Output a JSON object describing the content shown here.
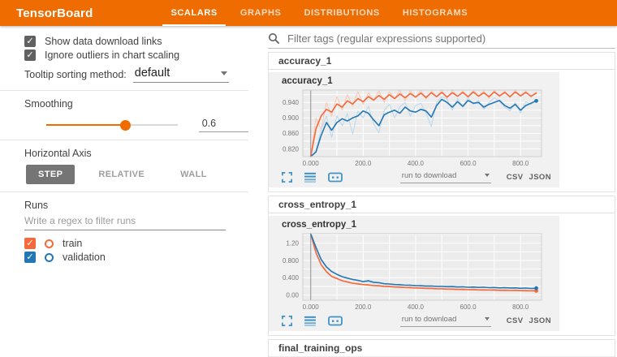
{
  "header": {
    "title": "TensorBoard",
    "tabs": [
      {
        "label": "SCALARS",
        "active": true
      },
      {
        "label": "GRAPHS",
        "active": false
      },
      {
        "label": "DISTRIBUTIONS",
        "active": false
      },
      {
        "label": "HISTOGRAMS",
        "active": false
      }
    ]
  },
  "sidebar": {
    "checkboxes": [
      {
        "label": "Show data download links",
        "checked": true
      },
      {
        "label": "Ignore outliers in chart scaling",
        "checked": true
      }
    ],
    "tooltip_sort": {
      "label": "Tooltip sorting method:",
      "value": "default"
    },
    "smoothing": {
      "label": "Smoothing",
      "value": "0.6",
      "percent": 60
    },
    "horizontal_axis": {
      "label": "Horizontal Axis",
      "options": [
        "STEP",
        "RELATIVE",
        "WALL"
      ],
      "selected": "STEP"
    },
    "runs": {
      "label": "Runs",
      "filter_placeholder": "Write a regex to filter runs",
      "items": [
        {
          "label": "train",
          "color": "#f4683c",
          "checked": true
        },
        {
          "label": "validation",
          "color": "#2277b4",
          "checked": true
        }
      ]
    }
  },
  "main": {
    "filter_placeholder": "Filter tags (regular expressions supported)",
    "sections": [
      {
        "label": "accuracy_1"
      },
      {
        "label": "cross_entropy_1"
      },
      {
        "label": "final_training_ops"
      }
    ],
    "card_footer": {
      "download_label": "run to download",
      "csv": "CSV",
      "json": "JSON"
    }
  },
  "colors": {
    "header_bg": "#ef6c00",
    "accent": "#ef6c00",
    "train": "#f4683c",
    "train_light": "#fbc6ae",
    "validation": "#2277b4",
    "validation_light": "#b9d7ec",
    "icon_blue": "#4292c6",
    "plot_bg": "#ececec",
    "grid": "#ffffff"
  },
  "chart_data": [
    {
      "type": "line",
      "title": "accuracy_1",
      "legend": [
        "train",
        "validation"
      ],
      "grid": true,
      "xlim": [
        -30,
        880
      ],
      "ylim": [
        0.8,
        0.972
      ],
      "x_range": [
        0,
        860
      ],
      "xticks": [
        0,
        200,
        400,
        600,
        800
      ],
      "xtick_labels": [
        "0.000",
        "200.0",
        "400.0",
        "600.0",
        "800.0"
      ],
      "yticks": [
        0.82,
        0.86,
        0.9,
        0.94
      ],
      "ytick_labels": [
        "0.820",
        "0.860",
        "0.900",
        "0.940"
      ],
      "x_grid": 100,
      "y_grid": 0.02,
      "plot_bg": "#ececec",
      "series": [
        {
          "name": "train (raw)",
          "color": "#fbc6ae",
          "width": 1,
          "values": [
            0.79,
            0.9,
            0.87,
            0.94,
            0.905,
            0.955,
            0.92,
            0.96,
            0.93,
            0.968,
            0.935,
            0.965,
            0.945,
            0.97,
            0.94,
            0.968,
            0.95,
            0.972,
            0.945,
            0.97,
            0.952,
            0.972,
            0.948,
            0.97,
            0.955,
            0.972,
            0.95,
            0.972,
            0.955,
            0.97,
            0.952,
            0.972,
            0.956,
            0.97,
            0.95,
            0.972,
            0.955,
            0.97,
            0.952,
            0.972,
            0.956,
            0.97,
            0.953,
            0.968
          ]
        },
        {
          "name": "validation (raw)",
          "color": "#b9d7ec",
          "width": 1,
          "values": [
            0.795,
            0.815,
            0.87,
            0.905,
            0.85,
            0.905,
            0.88,
            0.912,
            0.858,
            0.918,
            0.9,
            0.93,
            0.885,
            0.862,
            0.92,
            0.935,
            0.9,
            0.928,
            0.94,
            0.905,
            0.932,
            0.938,
            0.912,
            0.878,
            0.94,
            0.955,
            0.948,
            0.92,
            0.95,
            0.928,
            0.952,
            0.935,
            0.945,
            0.922,
            0.94,
            0.952,
            0.942,
            0.928,
            0.918,
            0.94,
            0.912,
            0.942,
            0.935,
            0.945
          ]
        },
        {
          "name": "train (smoothed 0.6)",
          "color": "#f4683c",
          "width": 1.6,
          "values": [
            0.8,
            0.872,
            0.905,
            0.922,
            0.915,
            0.936,
            0.928,
            0.944,
            0.936,
            0.95,
            0.942,
            0.955,
            0.946,
            0.958,
            0.948,
            0.96,
            0.95,
            0.962,
            0.952,
            0.963,
            0.954,
            0.964,
            0.953,
            0.965,
            0.955,
            0.966,
            0.954,
            0.965,
            0.956,
            0.966,
            0.955,
            0.967,
            0.956,
            0.965,
            0.955,
            0.967,
            0.957,
            0.966,
            0.955,
            0.967,
            0.957,
            0.966,
            0.956,
            0.964
          ]
        },
        {
          "name": "validation (smoothed 0.6)",
          "color": "#2277b4",
          "width": 1.6,
          "end_dot": true,
          "values": [
            0.8,
            0.812,
            0.855,
            0.888,
            0.868,
            0.888,
            0.898,
            0.892,
            0.9,
            0.905,
            0.918,
            0.912,
            0.895,
            0.88,
            0.908,
            0.915,
            0.92,
            0.912,
            0.928,
            0.918,
            0.915,
            0.922,
            0.918,
            0.902,
            0.932,
            0.948,
            0.94,
            0.928,
            0.942,
            0.93,
            0.945,
            0.938,
            0.94,
            0.928,
            0.935,
            0.94,
            0.945,
            0.932,
            0.925,
            0.935,
            0.92,
            0.932,
            0.938,
            0.944
          ]
        }
      ]
    },
    {
      "type": "line",
      "title": "cross_entropy_1",
      "legend": [
        "train",
        "validation"
      ],
      "grid": true,
      "xlim": [
        -30,
        880
      ],
      "ylim": [
        -0.12,
        1.42
      ],
      "x_range": [
        0,
        860
      ],
      "xticks": [
        0,
        200,
        400,
        600,
        800
      ],
      "xtick_labels": [
        "0.000",
        "200.0",
        "400.0",
        "600.0",
        "800.0"
      ],
      "yticks": [
        0.0,
        0.4,
        0.8,
        1.2
      ],
      "ytick_labels": [
        "0.00",
        "0.400",
        "0.800",
        "1.20"
      ],
      "x_grid": 100,
      "y_grid": 0.2,
      "plot_bg": "#ececec",
      "series": [
        {
          "name": "train (raw)",
          "color": "#fbc6ae",
          "width": 1,
          "values": [
            1.42,
            1.0,
            0.72,
            0.56,
            0.44,
            0.4,
            0.33,
            0.32,
            0.27,
            0.28,
            0.24,
            0.25,
            0.215,
            0.23,
            0.2,
            0.215,
            0.185,
            0.2,
            0.175,
            0.19,
            0.165,
            0.18,
            0.155,
            0.17,
            0.15,
            0.16,
            0.14,
            0.155,
            0.135,
            0.15,
            0.13,
            0.145,
            0.125,
            0.14,
            0.12,
            0.135,
            0.115,
            0.13,
            0.112,
            0.125,
            0.108,
            0.12,
            0.105,
            0.115
          ]
        },
        {
          "name": "validation (raw)",
          "color": "#b9d7ec",
          "width": 1,
          "values": [
            1.42,
            1.12,
            0.84,
            0.66,
            0.54,
            0.47,
            0.42,
            0.39,
            0.36,
            0.33,
            0.31,
            0.3,
            0.28,
            0.29,
            0.255,
            0.262,
            0.24,
            0.246,
            0.228,
            0.232,
            0.212,
            0.222,
            0.202,
            0.215,
            0.196,
            0.206,
            0.19,
            0.2,
            0.183,
            0.196,
            0.178,
            0.188,
            0.172,
            0.185,
            0.168,
            0.178,
            0.162,
            0.172,
            0.158,
            0.168,
            0.152,
            0.165,
            0.15,
            0.16
          ]
        },
        {
          "name": "train (smoothed 0.6)",
          "color": "#f4683c",
          "width": 1.6,
          "end_dot": true,
          "values": [
            1.42,
            0.98,
            0.7,
            0.54,
            0.43,
            0.38,
            0.33,
            0.3,
            0.272,
            0.258,
            0.242,
            0.232,
            0.22,
            0.212,
            0.202,
            0.196,
            0.187,
            0.182,
            0.175,
            0.17,
            0.164,
            0.16,
            0.154,
            0.15,
            0.145,
            0.142,
            0.137,
            0.134,
            0.13,
            0.128,
            0.124,
            0.122,
            0.119,
            0.117,
            0.114,
            0.112,
            0.11,
            0.108,
            0.106,
            0.104,
            0.102,
            0.1,
            0.098,
            0.097
          ]
        },
        {
          "name": "validation (smoothed 0.6)",
          "color": "#2277b4",
          "width": 1.6,
          "end_dot": true,
          "values": [
            1.42,
            1.1,
            0.82,
            0.65,
            0.545,
            0.48,
            0.425,
            0.39,
            0.36,
            0.34,
            0.31,
            0.33,
            0.295,
            0.285,
            0.262,
            0.255,
            0.242,
            0.238,
            0.228,
            0.225,
            0.216,
            0.215,
            0.206,
            0.208,
            0.199,
            0.2,
            0.193,
            0.195,
            0.186,
            0.19,
            0.181,
            0.184,
            0.176,
            0.18,
            0.171,
            0.174,
            0.166,
            0.17,
            0.163,
            0.166,
            0.157,
            0.162,
            0.153,
            0.158
          ]
        }
      ]
    }
  ]
}
